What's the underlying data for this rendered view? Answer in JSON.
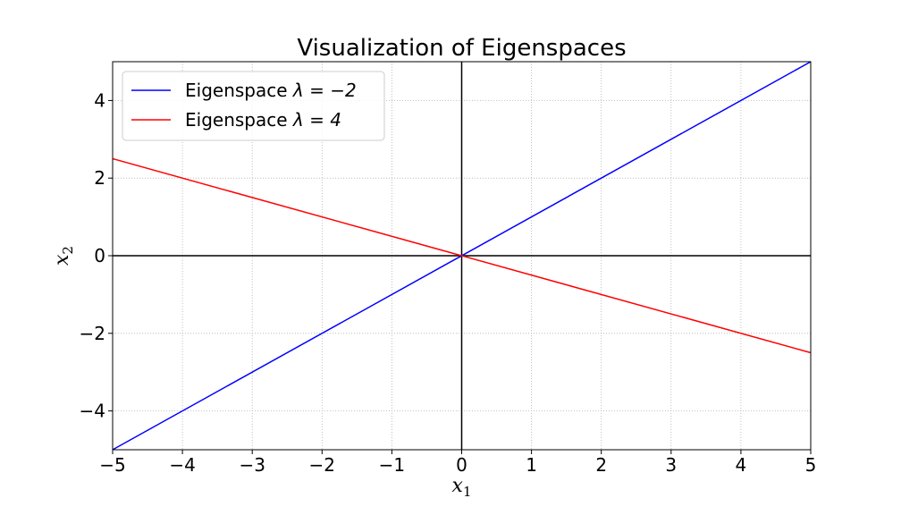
{
  "chart_data": {
    "type": "line",
    "title": "Visualization of Eigenspaces",
    "xlabel": {
      "base": "x",
      "sub": "1"
    },
    "ylabel": {
      "base": "x",
      "sub": "2"
    },
    "xlim": [
      -5,
      5
    ],
    "ylim": [
      -5,
      5
    ],
    "xticks": [
      -5,
      -4,
      -3,
      -2,
      -1,
      0,
      1,
      2,
      3,
      4,
      5
    ],
    "yticks": [
      -4,
      -2,
      0,
      2,
      4
    ],
    "xtick_labels": [
      "−5",
      "−4",
      "−3",
      "−2",
      "−1",
      "0",
      "1",
      "2",
      "3",
      "4",
      "5"
    ],
    "ytick_labels": [
      "−4",
      "−2",
      "0",
      "2",
      "4"
    ],
    "grid": true,
    "grid_style": "dotted",
    "legend_position": "upper-left",
    "reference_lines": [
      {
        "orientation": "horizontal",
        "value": 0,
        "color": "#000000"
      },
      {
        "orientation": "vertical",
        "value": 0,
        "color": "#000000"
      }
    ],
    "series": [
      {
        "name": "Eigenspace λ = −2",
        "legend_prefix": "Eigenspace ",
        "legend_math": "λ = −2",
        "color": "#0000ff",
        "x": [
          -5,
          5
        ],
        "y": [
          -5,
          5
        ]
      },
      {
        "name": "Eigenspace λ = 4",
        "legend_prefix": "Eigenspace ",
        "legend_math": "λ = 4",
        "color": "#ff0000",
        "x": [
          -5,
          5
        ],
        "y": [
          2.5,
          -2.5
        ]
      }
    ]
  }
}
